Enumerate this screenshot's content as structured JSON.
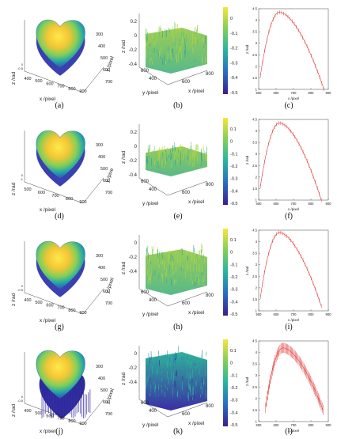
{
  "colors": {
    "yellow": "#f9e43a",
    "teal": "#27b3a0",
    "blue": "#3d2aa8",
    "navy": "#3a1f8c",
    "red": "#e23b3b"
  },
  "chart_data": [
    {
      "panel": "a",
      "caption": "(a)",
      "type": "surface-3d",
      "xlabel": "x /pixel",
      "ylabel": "y /pixel",
      "zlabel": "z /rad",
      "xticks": [
        "400",
        "500",
        "600",
        "700",
        "800",
        "900"
      ],
      "yticks": [
        "300",
        "400",
        "500",
        "600",
        "700"
      ],
      "zticks": [
        "0",
        "-0.5"
      ]
    },
    {
      "panel": "b",
      "caption": "(b)",
      "type": "surface-3d",
      "xlabel": "x /pixel",
      "ylabel": "y /pixel",
      "zlabel": "z /rad",
      "xticks": [
        "600",
        "800"
      ],
      "yticks": [
        "400",
        "600"
      ],
      "zticks": [
        "0.2",
        "0",
        "-0.2",
        "-0.4"
      ],
      "colorbar": [
        "0",
        "-0.1",
        "-0.2",
        "-0.3",
        "-0.4",
        "-0.5"
      ]
    },
    {
      "panel": "c",
      "caption": "(c)",
      "type": "line",
      "xlabel": "x /pixel",
      "ylabel": "z /rad",
      "xticks": [
        "500",
        "600",
        "700",
        "800",
        "900"
      ],
      "yticks": [
        "4.5",
        "4",
        "3.5",
        "3",
        "2.5",
        "2",
        "1.5",
        "1"
      ],
      "xlim": [
        500,
        900
      ],
      "ylim": [
        1,
        4.5
      ],
      "peak_x": 620,
      "peak_y": 4.35,
      "start_x": 510,
      "end_x": 875,
      "end_y": 1.0
    },
    {
      "panel": "d",
      "caption": "(d)",
      "type": "surface-3d",
      "xlabel": "x /pixel",
      "ylabel": "y /pixe",
      "zlabel": "z /rad",
      "xticks": [
        "500",
        "600",
        "700",
        "800",
        "900"
      ],
      "yticks": [
        "300",
        "400",
        "500",
        "600",
        "700"
      ],
      "zticks": [
        "0",
        "-1"
      ]
    },
    {
      "panel": "e",
      "caption": "(e)",
      "type": "surface-3d",
      "xlabel": "x /pixel",
      "ylabel": "y /pixel",
      "zlabel": "z /rad",
      "xticks": [
        "600",
        "800"
      ],
      "yticks": [
        "400",
        "600"
      ],
      "zticks": [
        "0.2",
        "0",
        "-0.2",
        "-0.4"
      ],
      "colorbar": [
        "0.1",
        "0",
        "-0.1",
        "-0.2",
        "-0.3",
        "-0.4",
        "-0.5"
      ]
    },
    {
      "panel": "f",
      "caption": "(f)",
      "type": "line",
      "xlabel": "x /pixel",
      "ylabel": "z /rad",
      "xticks": [
        "500",
        "600",
        "700",
        "800",
        "900"
      ],
      "yticks": [
        "4.5",
        "4",
        "3.5",
        "3",
        "2.5",
        "2",
        "1.5",
        "1"
      ],
      "xlim": [
        500,
        900
      ],
      "ylim": [
        1,
        4.5
      ],
      "peak_x": 620,
      "peak_y": 4.35,
      "start_x": 510,
      "end_x": 860,
      "end_y": 1.0
    },
    {
      "panel": "g",
      "caption": "(g)",
      "type": "surface-3d",
      "xlabel": "x /pixel",
      "ylabel": "y /pixel",
      "zlabel": "z /rad",
      "xticks": [
        "400",
        "500",
        "600",
        "700",
        "800",
        "900"
      ],
      "yticks": [
        "300",
        "400",
        "500",
        "600",
        "700"
      ],
      "zticks": [
        "0",
        "-0.5"
      ]
    },
    {
      "panel": "h",
      "caption": "(h)",
      "type": "surface-3d",
      "xlabel": "x /pixel",
      "ylabel": "y /pixel",
      "zlabel": "z /rad",
      "xticks": [
        "600",
        "800"
      ],
      "yticks": [
        "400",
        "600"
      ],
      "zticks": [
        "0",
        "-0.2",
        "-0.4"
      ],
      "colorbar": [
        "0.1",
        "0",
        "-0.1",
        "-0.2",
        "-0.3",
        "-0.4",
        "-0.5"
      ]
    },
    {
      "panel": "i",
      "caption": "(i)",
      "type": "line",
      "xlabel": "x /pixel",
      "ylabel": "z /rad",
      "xticks": [
        "500",
        "600",
        "700",
        "800",
        "900"
      ],
      "yticks": [
        "4.5",
        "4",
        "3.5",
        "3",
        "2.5",
        "2",
        "1.5",
        "1"
      ],
      "xlim": [
        500,
        900
      ],
      "ylim": [
        1,
        4.5
      ],
      "peak_x": 620,
      "peak_y": 4.4,
      "start_x": 510,
      "end_x": 860,
      "end_y": 1.2
    },
    {
      "panel": "j",
      "caption": "(j)",
      "type": "surface-3d",
      "xlabel": "x /pixel",
      "ylabel": "y /pixel",
      "zlabel": "z /rad",
      "xticks": [
        "400",
        "500",
        "600",
        "700",
        "800",
        "900"
      ],
      "yticks": [
        "300",
        "400",
        "500",
        "600",
        "700"
      ],
      "zticks": [
        "0",
        "-0.5"
      ]
    },
    {
      "panel": "k",
      "caption": "(k)",
      "type": "surface-3d",
      "xlabel": "x /pixel",
      "ylabel": "y /pixel",
      "zlabel": "z /rad",
      "xticks": [
        "600",
        "800"
      ],
      "yticks": [
        "400",
        "600"
      ],
      "zticks": [
        "0",
        "-0.2",
        "-0.4"
      ],
      "colorbar": [
        "0.1",
        "0",
        "-0.1",
        "-0.2",
        "-0.3",
        "-0.4",
        "-0.5"
      ]
    },
    {
      "panel": "l",
      "caption": "(l)",
      "type": "line",
      "xlabel": "x /pixel",
      "ylabel": "z /rad",
      "xticks": [
        "500",
        "600",
        "700",
        "800",
        "900"
      ],
      "yticks": [
        "4.5",
        "4",
        "3.5",
        "3",
        "2.5",
        "2",
        "1.5",
        "1"
      ],
      "xlim": [
        500,
        900
      ],
      "ylim": [
        1,
        4.5
      ],
      "peak_x": 640,
      "peak_y": 4.2,
      "start_x": 540,
      "end_x": 870,
      "end_y": 1.5
    }
  ]
}
